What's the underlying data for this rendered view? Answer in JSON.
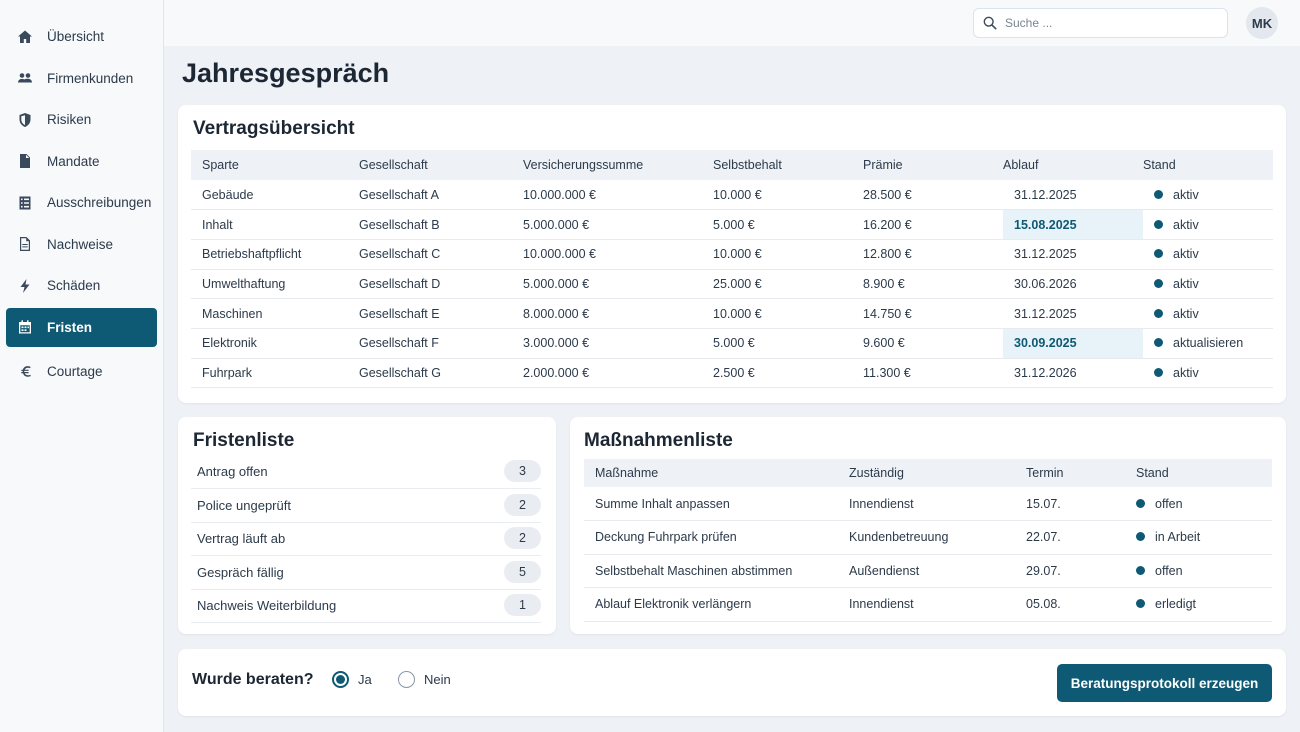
{
  "sidebar": {
    "items": [
      {
        "label": "Übersicht",
        "icon": "home-icon",
        "active": false
      },
      {
        "label": "Firmenkunden",
        "icon": "users-icon",
        "active": false
      },
      {
        "label": "Risiken",
        "icon": "shield-icon",
        "active": false
      },
      {
        "label": "Mandate",
        "icon": "document-icon",
        "active": false
      },
      {
        "label": "Ausschreibungen",
        "icon": "list-icon",
        "active": false
      },
      {
        "label": "Nachweise",
        "icon": "file-icon",
        "active": false
      },
      {
        "label": "Schäden",
        "icon": "bolt-icon",
        "active": false
      },
      {
        "label": "Fristen",
        "icon": "calendar-icon",
        "active": true
      },
      {
        "label": "Courtage",
        "icon": "euro-icon",
        "active": false
      }
    ]
  },
  "header": {
    "search_placeholder": "Suche ...",
    "avatar_initials": "MK"
  },
  "page": {
    "title": "Jahresgespräch"
  },
  "contracts": {
    "title": "Vertragsübersicht",
    "columns": [
      "Sparte",
      "Gesellschaft",
      "Versicherungssumme",
      "Selbstbehalt",
      "Prämie",
      "Ablauf",
      "Stand"
    ],
    "rows": [
      {
        "sparte": "Gebäude",
        "gesellschaft": "Gesellschaft A",
        "summe": "10.000.000 €",
        "selbstbehalt": "10.000 €",
        "praemie": "28.500 €",
        "ablauf": "31.12.2025",
        "stand": "aktiv",
        "highlight": false
      },
      {
        "sparte": "Inhalt",
        "gesellschaft": "Gesellschaft B",
        "summe": "5.000.000 €",
        "selbstbehalt": "5.000 €",
        "praemie": "16.200 €",
        "ablauf": "15.08.2025",
        "stand": "aktiv",
        "highlight": true
      },
      {
        "sparte": "Betriebshaftpflicht",
        "gesellschaft": "Gesellschaft C",
        "summe": "10.000.000 €",
        "selbstbehalt": "10.000 €",
        "praemie": "12.800 €",
        "ablauf": "31.12.2025",
        "stand": "aktiv",
        "highlight": false
      },
      {
        "sparte": "Umwelthaftung",
        "gesellschaft": "Gesellschaft D",
        "summe": "5.000.000 €",
        "selbstbehalt": "25.000 €",
        "praemie": "8.900 €",
        "ablauf": "30.06.2026",
        "stand": "aktiv",
        "highlight": false
      },
      {
        "sparte": "Maschinen",
        "gesellschaft": "Gesellschaft E",
        "summe": "8.000.000 €",
        "selbstbehalt": "10.000 €",
        "praemie": "14.750 €",
        "ablauf": "31.12.2025",
        "stand": "aktiv",
        "highlight": false
      },
      {
        "sparte": "Elektronik",
        "gesellschaft": "Gesellschaft F",
        "summe": "3.000.000 €",
        "selbstbehalt": "5.000 €",
        "praemie": "9.600 €",
        "ablauf": "30.09.2025",
        "stand": "aktualisieren",
        "highlight": true
      },
      {
        "sparte": "Fuhrpark",
        "gesellschaft": "Gesellschaft G",
        "summe": "2.000.000 €",
        "selbstbehalt": "2.500 €",
        "praemie": "11.300 €",
        "ablauf": "31.12.2026",
        "stand": "aktiv",
        "highlight": false
      }
    ]
  },
  "deadlines": {
    "title": "Fristenliste",
    "items": [
      {
        "label": "Antrag offen",
        "count": "3"
      },
      {
        "label": "Police ungeprüft",
        "count": "2"
      },
      {
        "label": "Vertrag läuft ab",
        "count": "2"
      },
      {
        "label": "Gespräch fällig",
        "count": "5"
      },
      {
        "label": "Nachweis Weiterbildung",
        "count": "1"
      }
    ]
  },
  "measures": {
    "title": "Maßnahmenliste",
    "columns": [
      "Maßnahme",
      "Zuständig",
      "Termin",
      "Stand"
    ],
    "rows": [
      {
        "massnahme": "Summe Inhalt anpassen",
        "zustaendig": "Innendienst",
        "termin": "15.07.",
        "stand": "offen"
      },
      {
        "massnahme": "Deckung Fuhrpark prüfen",
        "zustaendig": "Kundenbetreuung",
        "termin": "22.07.",
        "stand": "in Arbeit"
      },
      {
        "massnahme": "Selbstbehalt Maschinen abstimmen",
        "zustaendig": "Außendienst",
        "termin": "29.07.",
        "stand": "offen"
      },
      {
        "massnahme": "Ablauf Elektronik verlängern",
        "zustaendig": "Innendienst",
        "termin": "05.08.",
        "stand": "erledigt"
      }
    ]
  },
  "consultation": {
    "question": "Wurde beraten?",
    "options": [
      {
        "label": "Ja",
        "selected": true
      },
      {
        "label": "Nein",
        "selected": false
      }
    ],
    "button_label": "Beratungsprotokoll erzeugen"
  },
  "colors": {
    "accent": "#0e5a74",
    "highlight_bg": "#e7f2f9"
  }
}
